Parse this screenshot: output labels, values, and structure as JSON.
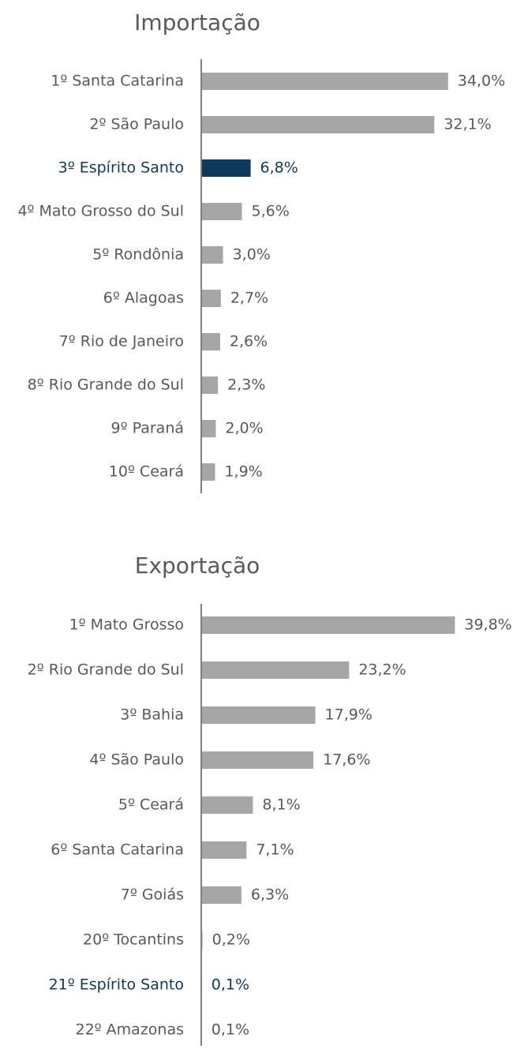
{
  "chart_data": [
    {
      "type": "hbar",
      "title": "Importação",
      "categories": [
        "1º Santa Catarina",
        "2º São Paulo",
        "3º Espírito Santo",
        "4º Mato Grosso do Sul",
        "5º Rondônia",
        "6º Alagoas",
        "7º Rio de Janeiro",
        "8º Rio Grande do Sul",
        "9º Paraná",
        "10º Ceará"
      ],
      "values": [
        34.0,
        32.1,
        6.8,
        5.6,
        3.0,
        2.7,
        2.6,
        2.3,
        2.0,
        1.9
      ],
      "value_labels": [
        "34,0%",
        "32,1%",
        "6,8%",
        "5,6%",
        "3,0%",
        "2,7%",
        "2,6%",
        "2,3%",
        "2,0%",
        "1,9%"
      ],
      "colors": [
        "#a6a6a6",
        "#a6a6a6",
        "#0d3a5c",
        "#a6a6a6",
        "#a6a6a6",
        "#a6a6a6",
        "#a6a6a6",
        "#a6a6a6",
        "#a6a6a6",
        "#a6a6a6"
      ],
      "label_colors": [
        "#595959",
        "#595959",
        "#0d3a5c",
        "#595959",
        "#595959",
        "#595959",
        "#595959",
        "#595959",
        "#595959",
        "#595959"
      ],
      "xlim": [
        0,
        40
      ]
    },
    {
      "type": "hbar",
      "title": "Exportação",
      "categories": [
        "1º Mato Grosso",
        "2º Rio Grande do Sul",
        "3º Bahia",
        "4º São Paulo",
        "5º Ceará",
        "6º Santa Catarina",
        "7º Goiás",
        "20º Tocantins",
        "21º Espírito Santo",
        "22º Amazonas"
      ],
      "values": [
        39.8,
        23.2,
        17.9,
        17.6,
        8.1,
        7.1,
        6.3,
        0.2,
        0.1,
        0.1
      ],
      "value_labels": [
        "39,8%",
        "23,2%",
        "17,9%",
        "17,6%",
        "8,1%",
        "7,1%",
        "6,3%",
        "0,2%",
        "0,1%",
        "0,1%"
      ],
      "colors": [
        "#a6a6a6",
        "#a6a6a6",
        "#a6a6a6",
        "#a6a6a6",
        "#a6a6a6",
        "#a6a6a6",
        "#a6a6a6",
        "#a6a6a6",
        "#0d3a5c",
        "#a6a6a6"
      ],
      "label_colors": [
        "#595959",
        "#595959",
        "#595959",
        "#595959",
        "#595959",
        "#595959",
        "#595959",
        "#595959",
        "#0d3a5c",
        "#595959"
      ],
      "xlim": [
        0,
        40
      ]
    }
  ]
}
